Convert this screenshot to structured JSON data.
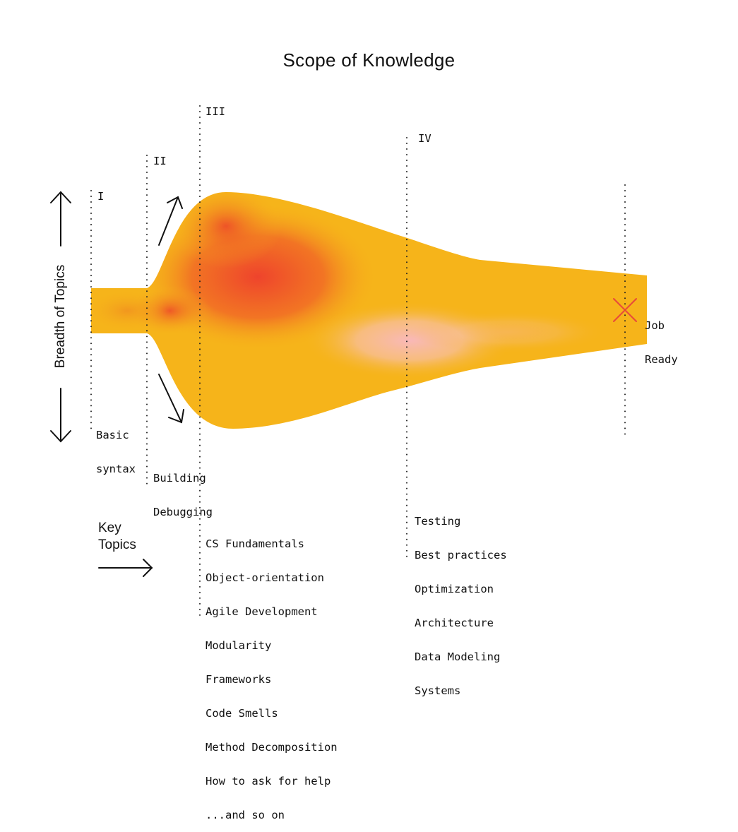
{
  "title": "Scope of Knowledge",
  "y_axis_label": "Breadth of Topics",
  "stages": [
    {
      "numeral": "I",
      "topics": [
        "Basic",
        "syntax"
      ]
    },
    {
      "numeral": "II",
      "topics": [
        "Building",
        "Debugging"
      ]
    },
    {
      "numeral": "III",
      "topics": [
        "CS Fundamentals",
        "Object-orientation",
        "Agile Development",
        "Modularity",
        "Frameworks",
        "Code Smells",
        "Method Decomposition",
        "How to ask for help",
        "...and so on"
      ]
    },
    {
      "numeral": "IV",
      "topics": [
        "Testing",
        "Best practices",
        "Optimization",
        "Architecture",
        "Data Modeling",
        "Systems"
      ]
    }
  ],
  "end_label": [
    "Job",
    "Ready"
  ],
  "key_topics_label": [
    "Key",
    "Topics"
  ],
  "colors": {
    "shape_base": "#f6b41a",
    "hot_spot": "#ee3e2d",
    "pink_glow": "#f9b8b8",
    "end_marker": "#e8473b",
    "ink": "#111111"
  }
}
